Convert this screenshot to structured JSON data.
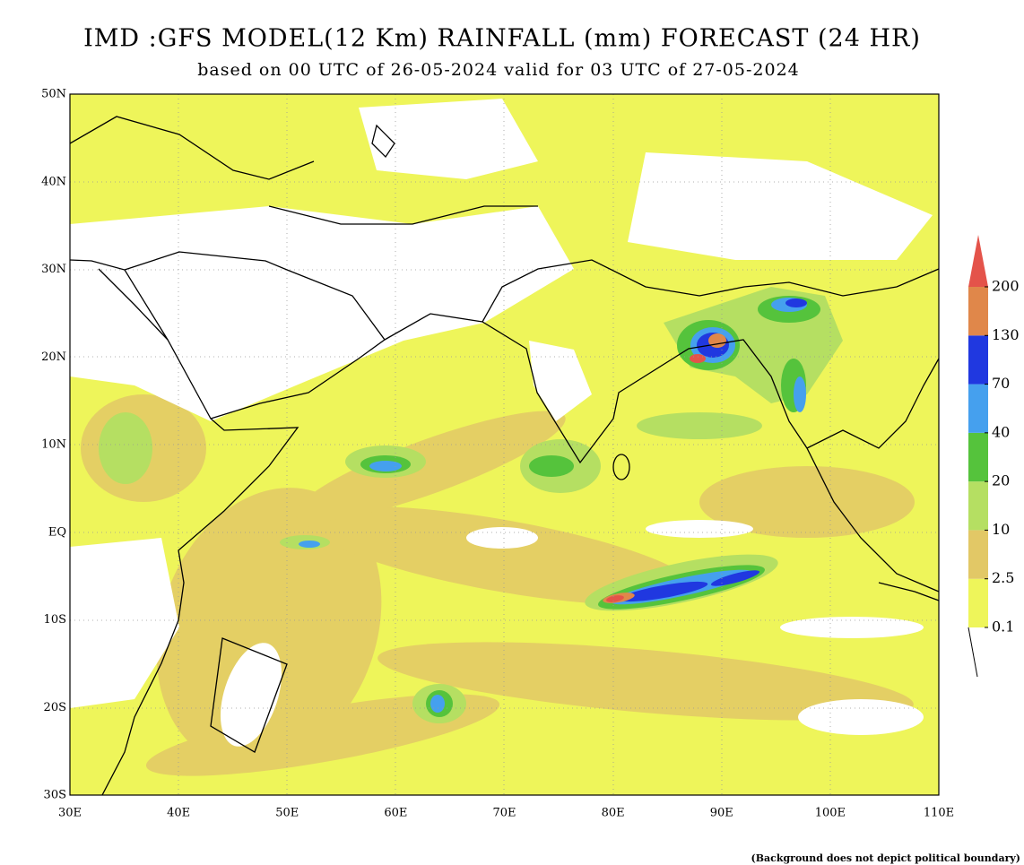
{
  "header": {
    "title": "IMD :GFS MODEL(12 Km) RAINFALL (mm) FORECAST (24 HR)",
    "subtitle": "based on 00 UTC of 26-05-2024 valid for 03 UTC of 27-05-2024"
  },
  "map": {
    "lat_labels": [
      "50N",
      "40N",
      "30N",
      "20N",
      "10N",
      "EQ",
      "10S",
      "20S",
      "30S"
    ],
    "lon_labels": [
      "30E",
      "40E",
      "50E",
      "60E",
      "70E",
      "80E",
      "90E",
      "100E",
      "110E"
    ]
  },
  "legend": {
    "levels": [
      "0.1",
      "2.5",
      "10",
      "20",
      "40",
      "70",
      "130",
      "200"
    ],
    "colors": [
      "#eef55a",
      "#e2c866",
      "#b5df62",
      "#55c33c",
      "#45a0ee",
      "#2038e0",
      "#e0874a",
      "#e4534a"
    ]
  },
  "footer": {
    "note": "(Background does not depict political boundary)"
  }
}
